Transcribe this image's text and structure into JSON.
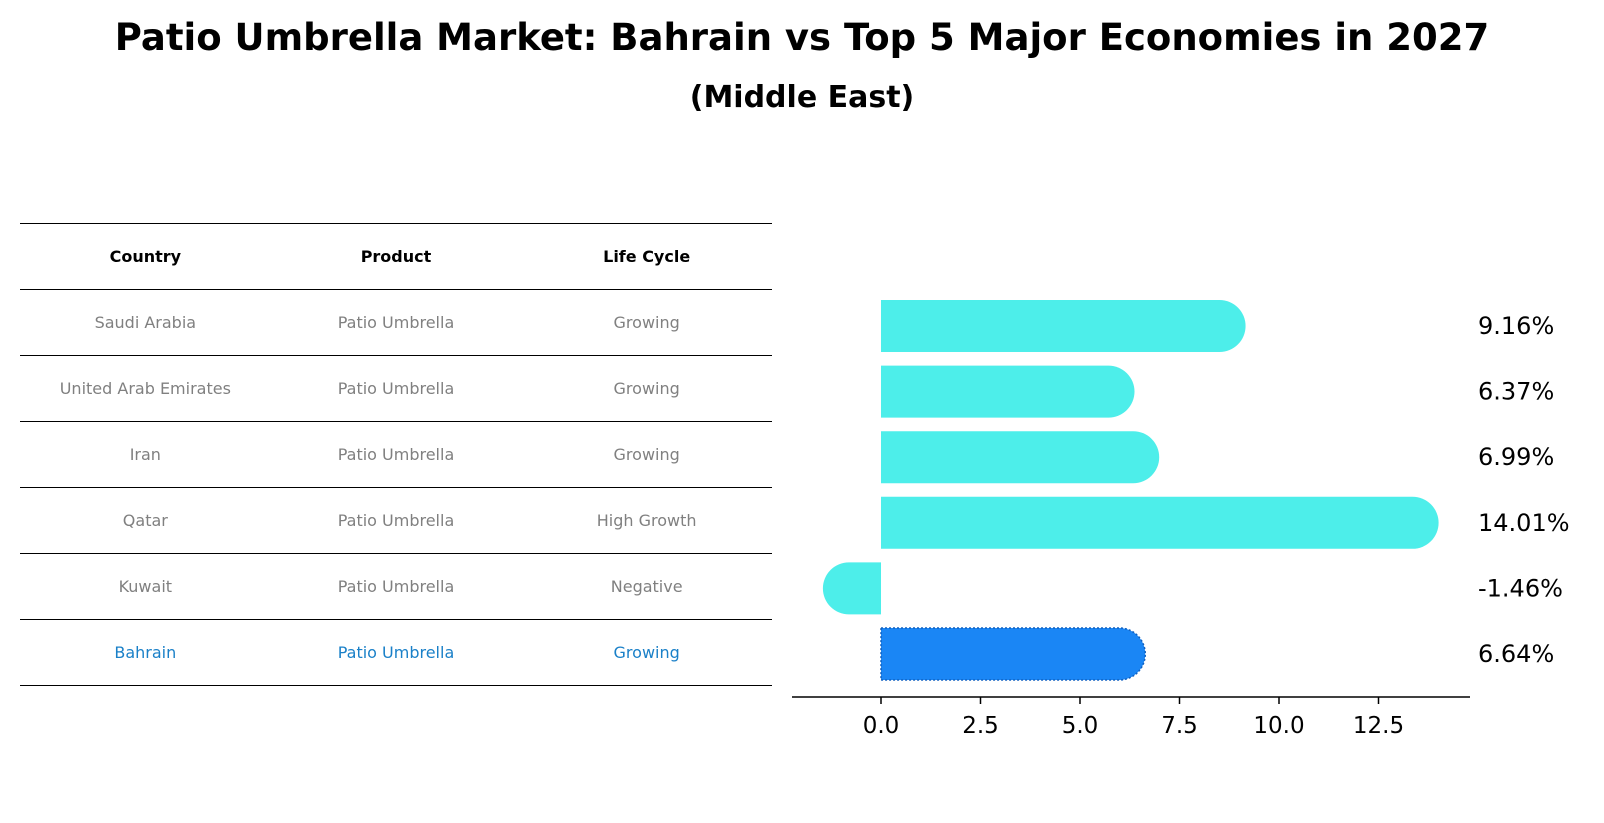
{
  "title": "Patio Umbrella Market: Bahrain vs Top 5 Major Economies in 2027",
  "subtitle": "(Middle East)",
  "table": {
    "headers": [
      "Country",
      "Product",
      "Life Cycle"
    ],
    "rows": [
      [
        "Saudi Arabia",
        "Patio Umbrella",
        "Growing"
      ],
      [
        "United Arab Emirates",
        "Patio Umbrella",
        "Growing"
      ],
      [
        "Iran",
        "Patio Umbrella",
        "Growing"
      ],
      [
        "Qatar",
        "Patio Umbrella",
        "High Growth"
      ],
      [
        "Kuwait",
        "Patio Umbrella",
        "Negative"
      ],
      [
        "Bahrain",
        "Patio Umbrella",
        "Growing"
      ]
    ]
  },
  "colors": {
    "bar": "#4deeea",
    "highlight": "#1a86f5",
    "highlight_text": "#1a80c8",
    "muted_text": "#808080"
  },
  "chart_data": {
    "type": "bar",
    "orientation": "horizontal",
    "categories": [
      "Saudi Arabia",
      "United Arab Emirates",
      "Iran",
      "Qatar",
      "Kuwait",
      "Bahrain"
    ],
    "values": [
      9.16,
      6.37,
      6.99,
      14.01,
      -1.46,
      6.64
    ],
    "labels": [
      "9.16%",
      "6.37%",
      "6.99%",
      "14.01%",
      "-1.46%",
      "6.64%"
    ],
    "highlight": "Bahrain",
    "xlim": [
      -2.25,
      14.8
    ],
    "xticks": [
      0.0,
      2.5,
      5.0,
      7.5,
      10.0,
      12.5
    ],
    "xtick_labels": [
      "0.0",
      "2.5",
      "5.0",
      "7.5",
      "10.0",
      "12.5"
    ]
  }
}
